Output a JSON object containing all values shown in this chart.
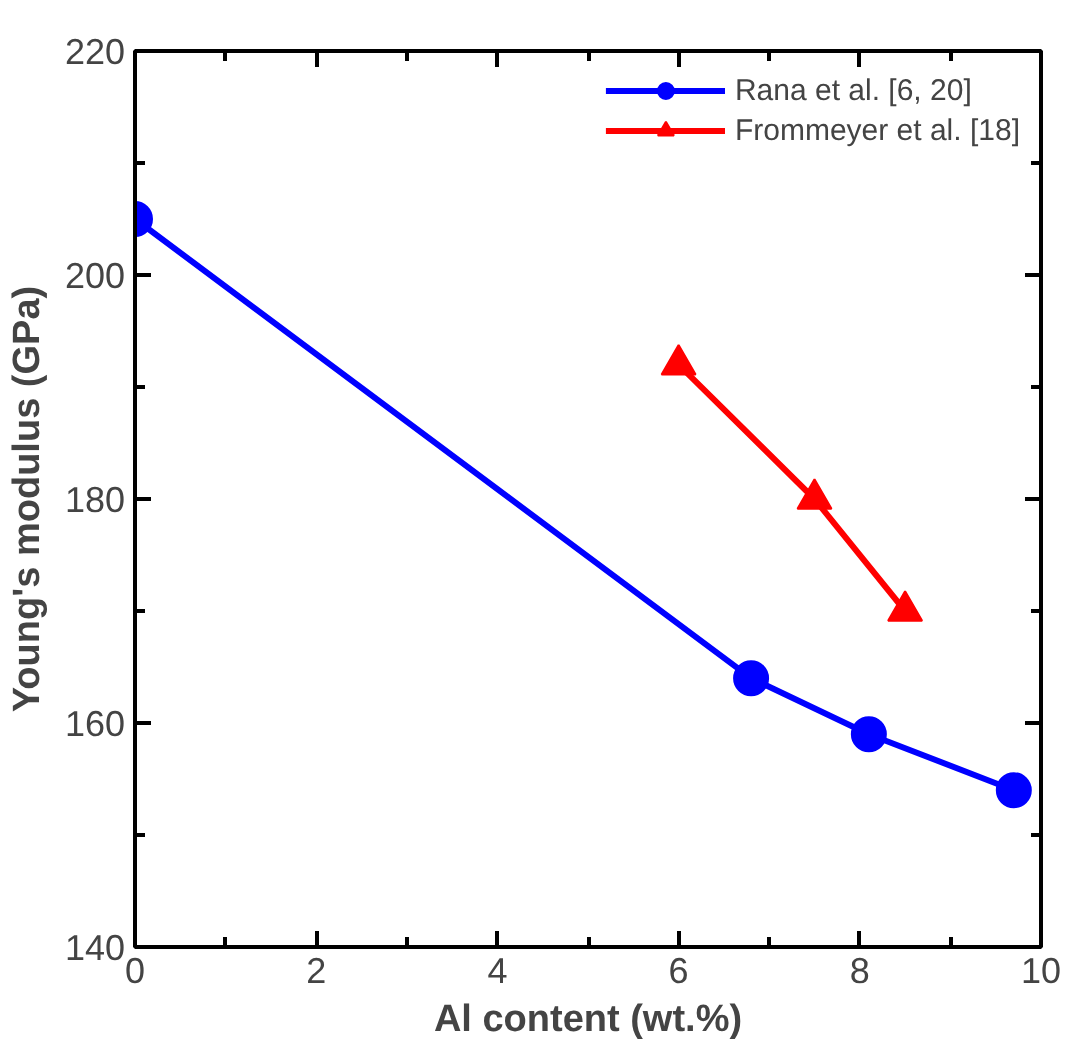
{
  "chart_data": {
    "type": "line",
    "xlabel": "Al content (wt.%)",
    "ylabel": "Young's modulus (GPa)",
    "xlim": [
      0,
      10
    ],
    "ylim": [
      140,
      220
    ],
    "xticks": [
      0,
      2,
      4,
      6,
      8,
      10
    ],
    "yticks": [
      140,
      160,
      180,
      200,
      220
    ],
    "grid": false,
    "legend": "top right",
    "line_style": "solid",
    "series": [
      {
        "name": "Rana et al. [6, 20]",
        "color": "#0000ff",
        "marker": "circle",
        "x": [
          0,
          6.8,
          8.1,
          9.7
        ],
        "values": [
          205,
          164,
          159,
          154
        ]
      },
      {
        "name": "Frommeyer et al. [18]",
        "color": "#ff0000",
        "marker": "triangle",
        "x": [
          6,
          7.5,
          8.5
        ],
        "values": [
          192,
          180,
          170
        ]
      }
    ]
  }
}
